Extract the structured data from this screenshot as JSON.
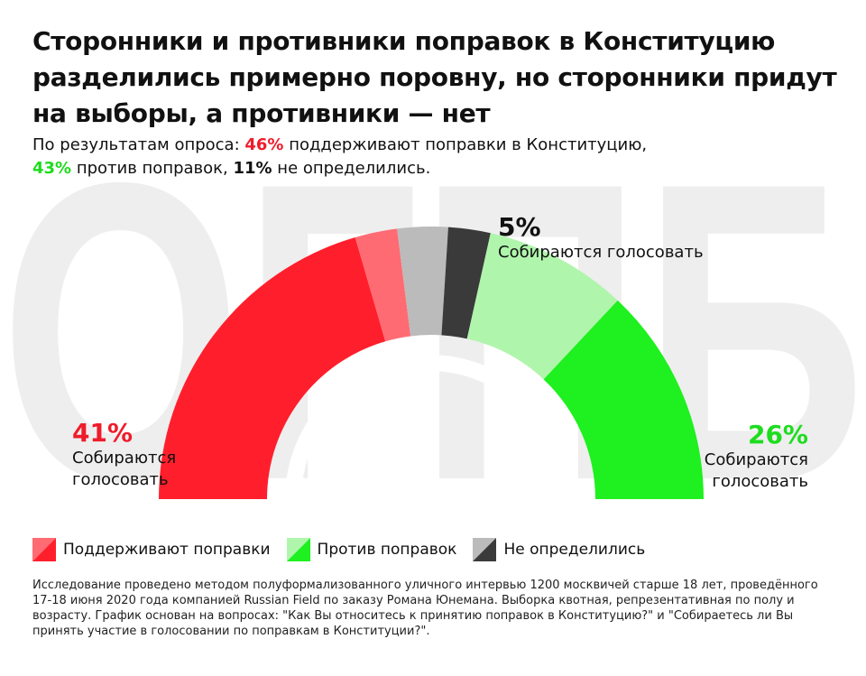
{
  "watermark": "ОГПБ",
  "header": {
    "title": "Сторонники и противники поправок в Конституцию разделились примерно поровну, но сторонники придут на выборы, а противники — нет",
    "subtitle": {
      "lead": "По результатам опроса: ",
      "support_pct": "46%",
      "support_text": "  поддерживают поправки в Конституцию,",
      "against_pct": "43%",
      "against_text": " против поправок, ",
      "undecided_pct": "11%",
      "undecided_text": " не определились."
    }
  },
  "chart_data": {
    "type": "pie",
    "shape": "semicircle",
    "groups": [
      {
        "name": "Поддерживают поправки",
        "total": 46,
        "segments": [
          {
            "part": "vote",
            "value": 41,
            "color": "#ff1f2c"
          },
          {
            "part": "not_vote",
            "value": 5,
            "color": "#ff6b73"
          }
        ]
      },
      {
        "name": "Не определились",
        "total": 11,
        "segments": [
          {
            "part": "not_vote",
            "value": 6,
            "color": "#bbbbbb"
          },
          {
            "part": "vote",
            "value": 5,
            "color": "#3a3a3a"
          }
        ]
      },
      {
        "name": "Против поправок",
        "total": 43,
        "segments": [
          {
            "part": "not_vote",
            "value": 17,
            "color": "#b0f5ac"
          },
          {
            "part": "vote",
            "value": 26,
            "color": "#1ff01f"
          }
        ]
      }
    ],
    "inner_arc_color": "#ffffff",
    "callouts": [
      {
        "value": "41%",
        "label": "Собираются голосовать"
      },
      {
        "value": "5%",
        "label": "Собираются голосовать"
      },
      {
        "value": "26%",
        "label": "Собираются голосовать"
      }
    ],
    "legend": [
      {
        "label": "Поддерживают поправки",
        "color_light": "#ff6b73",
        "color_dark": "#ff1f2c"
      },
      {
        "label": "Против поправок",
        "color_light": "#b0f5ac",
        "color_dark": "#1ff01f"
      },
      {
        "label": "Не определились",
        "color_light": "#bbbbbb",
        "color_dark": "#3a3a3a"
      }
    ],
    "legend_position": "bottom-left"
  },
  "footnote": "Исследование проведено методом полуформализованного уличного интервью 1200 москвичей старше 18 лет, проведённого 17-18 июня 2020 года компанией Russian Field по заказу Романа Юнемана. Выборка квотная, репрезентативная по полу и возрасту. График основан на вопросах: \"Как Вы относитесь к принятию поправок в Конституцию?\" и \"Собираетесь ли Вы принять участие в голосовании по поправкам в Конституции?\"."
}
